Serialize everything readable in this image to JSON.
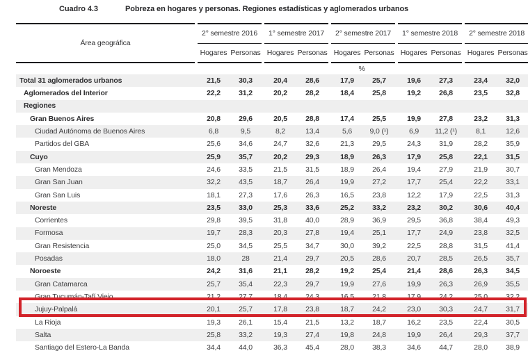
{
  "title": {
    "number": "Cuadro 4.3",
    "text": "Pobreza en hogares y personas. Regiones estadísticas y aglomerados urbanos"
  },
  "highlight_color": "#d2232a",
  "stripe_color": "#efefef",
  "table": {
    "area_header": "Área geográfica",
    "unit_row": "%",
    "periods": [
      "2° semestre 2016",
      "1° semestre 2017",
      "2° semestre 2017",
      "1° semestre 2018",
      "2° semestre 2018"
    ],
    "subheaders": [
      "Hogares",
      "Personas"
    ],
    "rows": [
      {
        "label": "Total 31 aglomerados urbanos",
        "indent": 0,
        "bold": true,
        "highlighted": false,
        "values": [
          "21,5",
          "30,3",
          "20,4",
          "28,6",
          "17,9",
          "25,7",
          "19,6",
          "27,3",
          "23,4",
          "32,0"
        ]
      },
      {
        "label": "Aglomerados del Interior",
        "indent": 1,
        "bold": true,
        "highlighted": false,
        "values": [
          "22,2",
          "31,2",
          "20,2",
          "28,2",
          "18,4",
          "25,8",
          "19,2",
          "26,8",
          "23,5",
          "32,8"
        ]
      },
      {
        "label": "Regiones",
        "indent": 1,
        "bold": true,
        "highlighted": false,
        "values": [
          "",
          "",
          "",
          "",
          "",
          "",
          "",
          "",
          "",
          ""
        ]
      },
      {
        "label": "Gran Buenos Aires",
        "indent": 2,
        "bold": true,
        "highlighted": false,
        "values": [
          "20,8",
          "29,6",
          "20,5",
          "28,8",
          "17,4",
          "25,5",
          "19,9",
          "27,8",
          "23,2",
          "31,3"
        ]
      },
      {
        "label": "Ciudad Autónoma de Buenos Aires",
        "indent": 3,
        "bold": false,
        "highlighted": false,
        "values": [
          "6,8",
          "9,5",
          "8,2",
          "13,4",
          "5,6",
          "9,0 (¹)",
          "6,9",
          "11,2 (¹)",
          "8,1",
          "12,6"
        ]
      },
      {
        "label": "Partidos del GBA",
        "indent": 3,
        "bold": false,
        "highlighted": false,
        "values": [
          "25,6",
          "34,6",
          "24,7",
          "32,6",
          "21,3",
          "29,5",
          "24,3",
          "31,9",
          "28,2",
          "35,9"
        ]
      },
      {
        "label": "Cuyo",
        "indent": 2,
        "bold": true,
        "highlighted": false,
        "values": [
          "25,9",
          "35,7",
          "20,2",
          "29,3",
          "18,9",
          "26,3",
          "17,9",
          "25,8",
          "22,1",
          "31,5"
        ]
      },
      {
        "label": "Gran Mendoza",
        "indent": 3,
        "bold": false,
        "highlighted": false,
        "values": [
          "24,6",
          "33,5",
          "21,5",
          "31,5",
          "18,9",
          "26,4",
          "19,4",
          "27,9",
          "21,9",
          "30,7"
        ]
      },
      {
        "label": "Gran San Juan",
        "indent": 3,
        "bold": false,
        "highlighted": false,
        "values": [
          "32,2",
          "43,5",
          "18,7",
          "26,4",
          "19,9",
          "27,2",
          "17,7",
          "25,4",
          "22,2",
          "33,1"
        ]
      },
      {
        "label": "Gran San Luis",
        "indent": 3,
        "bold": false,
        "highlighted": false,
        "values": [
          "18,1",
          "27,3",
          "17,6",
          "26,3",
          "16,5",
          "23,8",
          "12,2",
          "17,9",
          "22,5",
          "31,3"
        ]
      },
      {
        "label": "Noreste",
        "indent": 2,
        "bold": true,
        "highlighted": false,
        "values": [
          "23,5",
          "33,0",
          "25,3",
          "33,6",
          "25,2",
          "33,2",
          "23,2",
          "30,2",
          "30,6",
          "40,4"
        ]
      },
      {
        "label": "Corrientes",
        "indent": 3,
        "bold": false,
        "highlighted": false,
        "values": [
          "29,8",
          "39,5",
          "31,8",
          "40,0",
          "28,9",
          "36,9",
          "29,5",
          "36,8",
          "38,4",
          "49,3"
        ]
      },
      {
        "label": "Formosa",
        "indent": 3,
        "bold": false,
        "highlighted": false,
        "values": [
          "19,7",
          "28,3",
          "20,3",
          "27,8",
          "19,4",
          "25,1",
          "17,7",
          "24,9",
          "23,8",
          "32,5"
        ]
      },
      {
        "label": "Gran Resistencia",
        "indent": 3,
        "bold": false,
        "highlighted": false,
        "values": [
          "25,0",
          "34,5",
          "25,5",
          "34,7",
          "30,0",
          "39,2",
          "22,5",
          "28,8",
          "31,5",
          "41,4"
        ]
      },
      {
        "label": "Posadas",
        "indent": 3,
        "bold": false,
        "highlighted": false,
        "values": [
          "18,0",
          "28",
          "21,4",
          "29,7",
          "20,5",
          "28,6",
          "20,7",
          "28,5",
          "26,5",
          "35,7"
        ]
      },
      {
        "label": "Noroeste",
        "indent": 2,
        "bold": true,
        "highlighted": false,
        "values": [
          "24,2",
          "31,6",
          "21,1",
          "28,2",
          "19,2",
          "25,4",
          "21,4",
          "28,6",
          "26,3",
          "34,5"
        ]
      },
      {
        "label": "Gran Catamarca",
        "indent": 3,
        "bold": false,
        "highlighted": false,
        "values": [
          "25,7",
          "35,4",
          "22,3",
          "29,7",
          "19,9",
          "27,6",
          "19,9",
          "26,3",
          "26,9",
          "35,5"
        ]
      },
      {
        "label": "Gran Tucumán-Tafí Viejo",
        "indent": 3,
        "bold": false,
        "highlighted": false,
        "values": [
          "21,2",
          "27,7",
          "18,4",
          "24,3",
          "16,5",
          "21,8",
          "17,9",
          "24,2",
          "25,0",
          "32,2"
        ]
      },
      {
        "label": "Jujuy-Palpalá",
        "indent": 3,
        "bold": false,
        "highlighted": true,
        "values": [
          "20,1",
          "25,7",
          "17,8",
          "23,8",
          "18,7",
          "24,2",
          "23,0",
          "30,3",
          "24,7",
          "31,7"
        ]
      },
      {
        "label": "La Rioja",
        "indent": 3,
        "bold": false,
        "highlighted": false,
        "values": [
          "19,3",
          "26,1",
          "15,4",
          "21,5",
          "13,2",
          "18,7",
          "16,2",
          "23,5",
          "22,4",
          "30,5"
        ]
      },
      {
        "label": "Salta",
        "indent": 3,
        "bold": false,
        "highlighted": false,
        "values": [
          "25,8",
          "33,2",
          "19,3",
          "27,4",
          "19,8",
          "24,8",
          "19,9",
          "26,4",
          "29,3",
          "37,7"
        ]
      },
      {
        "label": "Santiago del Estero-La Banda",
        "indent": 3,
        "bold": false,
        "highlighted": false,
        "values": [
          "34,4",
          "44,0",
          "36,3",
          "45,4",
          "28,0",
          "38,3",
          "34,6",
          "44,7",
          "28,0",
          "38,9"
        ]
      }
    ]
  }
}
